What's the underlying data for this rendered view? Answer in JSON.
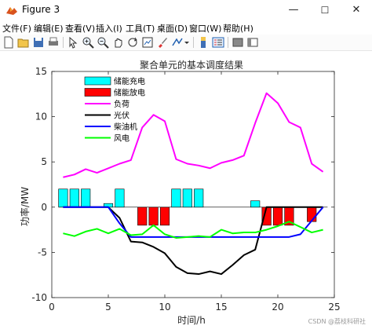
{
  "window": {
    "title": "Figure 3",
    "minimize": "—",
    "maximize": "☐",
    "close": "✕"
  },
  "menu": [
    "文件(F)",
    "编辑(E)",
    "查看(V)",
    "插入(I)",
    "工具(T)",
    "桌面(D)",
    "窗口(W)",
    "帮助(H)"
  ],
  "toolbar_icons": [
    "new-file-icon",
    "open-file-icon",
    "save-icon",
    "print-icon",
    "pointer-icon",
    "zoom-in-icon",
    "zoom-out-icon",
    "pan-icon",
    "rotate-icon",
    "data-cursor-icon",
    "brush-icon",
    "link-icon",
    "insert-colorbar-icon",
    "insert-legend-icon",
    "hide-plot-tools-icon",
    "show-plot-tools-icon"
  ],
  "watermark": "CSDN @荔枝科研社",
  "colors": {
    "charge": "#00ffff",
    "discharge": "#ff0000",
    "load": "#ff00ff",
    "pv": "#000000",
    "diesel": "#0000ff",
    "wind": "#00ff00"
  },
  "chart_data": {
    "type": "bar+line",
    "title": "聚合单元的基本调度结果",
    "xlabel": "时间/h",
    "ylabel": "功率/MW",
    "xlim": [
      0,
      25
    ],
    "ylim": [
      -10,
      15
    ],
    "xticks": [
      0,
      5,
      10,
      15,
      20,
      25
    ],
    "yticks": [
      -10,
      -5,
      0,
      5,
      10,
      15
    ],
    "grid": false,
    "legend_position": "top-left",
    "hours": [
      1,
      2,
      3,
      4,
      5,
      6,
      7,
      8,
      9,
      10,
      11,
      12,
      13,
      14,
      15,
      16,
      17,
      18,
      19,
      20,
      21,
      22,
      23,
      24
    ],
    "bar_series": [
      {
        "name": "储能充电",
        "color": "#00ffff",
        "values": [
          2,
          2,
          2,
          0,
          0.4,
          2,
          0,
          0,
          0,
          0,
          2,
          2,
          2,
          0,
          0,
          0,
          0,
          0.7,
          0,
          0,
          0,
          0,
          0,
          0
        ]
      },
      {
        "name": "储能放电",
        "color": "#ff0000",
        "values": [
          0,
          0,
          0,
          0,
          0,
          0,
          0,
          -2,
          -2,
          -2,
          0,
          0,
          0,
          0,
          0,
          0,
          0,
          0,
          -2,
          -2,
          -2,
          0,
          -1.6,
          0
        ]
      }
    ],
    "line_series": [
      {
        "name": "负荷",
        "color": "#ff00ff",
        "values": [
          3.3,
          3.6,
          4.2,
          3.8,
          4.3,
          4.8,
          5.2,
          8.8,
          10.2,
          9.5,
          5.3,
          4.8,
          4.6,
          4.3,
          4.9,
          5.2,
          5.7,
          9.3,
          12.6,
          11.5,
          9.4,
          8.8,
          4.8,
          3.9
        ]
      },
      {
        "name": "光伏",
        "color": "#000000",
        "values": [
          0,
          0,
          0,
          0,
          0,
          -1.2,
          -3.8,
          -3.9,
          -4.4,
          -5.1,
          -6.6,
          -7.3,
          -7.4,
          -7.1,
          -7.4,
          -6.4,
          -5.3,
          -4.7,
          0,
          0,
          0,
          0,
          0,
          0
        ]
      },
      {
        "name": "柴油机",
        "color": "#0000ff",
        "values": [
          0,
          0,
          0,
          0,
          0,
          -1.8,
          -3.3,
          -3.3,
          -3.3,
          -3.3,
          -3.3,
          -3.3,
          -3.3,
          -3.3,
          -3.3,
          -3.3,
          -3.3,
          -3.3,
          -3.3,
          -3.3,
          -3.3,
          -3.0,
          -1.5,
          0
        ]
      },
      {
        "name": "风电",
        "color": "#00ff00",
        "values": [
          -2.9,
          -3.2,
          -2.7,
          -2.4,
          -2.9,
          -2.4,
          -3.1,
          -3.0,
          -2.0,
          -3.0,
          -3.4,
          -3.3,
          -3.2,
          -3.3,
          -2.5,
          -2.9,
          -2.8,
          -2.8,
          -2.5,
          -2.1,
          -1.6,
          -2.2,
          -2.8,
          -2.5
        ]
      }
    ],
    "legend_order": [
      "储能充电",
      "储能放电",
      "负荷",
      "光伏",
      "柴油机",
      "风电"
    ]
  }
}
